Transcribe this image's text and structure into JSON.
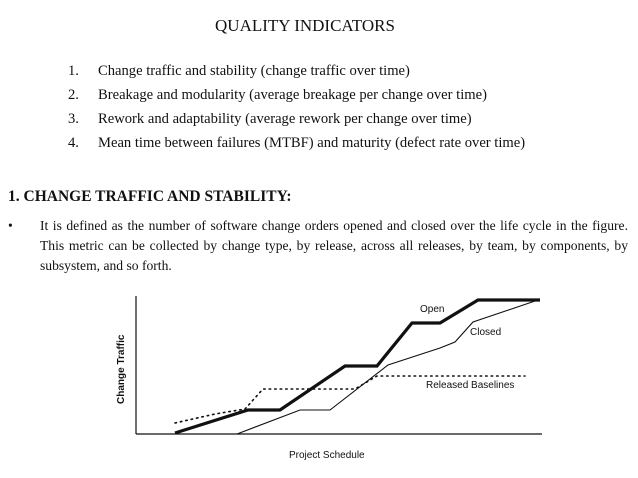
{
  "title": "QUALITY INDICATORS",
  "indicators": [
    {
      "num": "1.",
      "text": "Change traffic and stability (change traffic over time)"
    },
    {
      "num": "2.",
      "text": "Breakage and modularity (average breakage per change over time)"
    },
    {
      "num": "3.",
      "text": "Rework and adaptability (average rework per change over time)"
    },
    {
      "num": "4.",
      "text": "Mean time between failures (MTBF) and maturity (defect rate over time)"
    }
  ],
  "section": {
    "heading": "1. CHANGE TRAFFIC AND STABILITY:",
    "bullet_symbol": "•",
    "bullet_text": "It is defined as the number of software change orders opened and closed over the life cycle in the figure. This metric can be collected by change type, by release, across all releases, by team, by components, by subsystem, and so forth."
  },
  "figure": {
    "y_axis_label": "Change Traffic",
    "x_axis_label": "Project Schedule",
    "series_labels": {
      "open": "Open",
      "closed": "Closed",
      "released": "Released Baselines"
    }
  }
}
